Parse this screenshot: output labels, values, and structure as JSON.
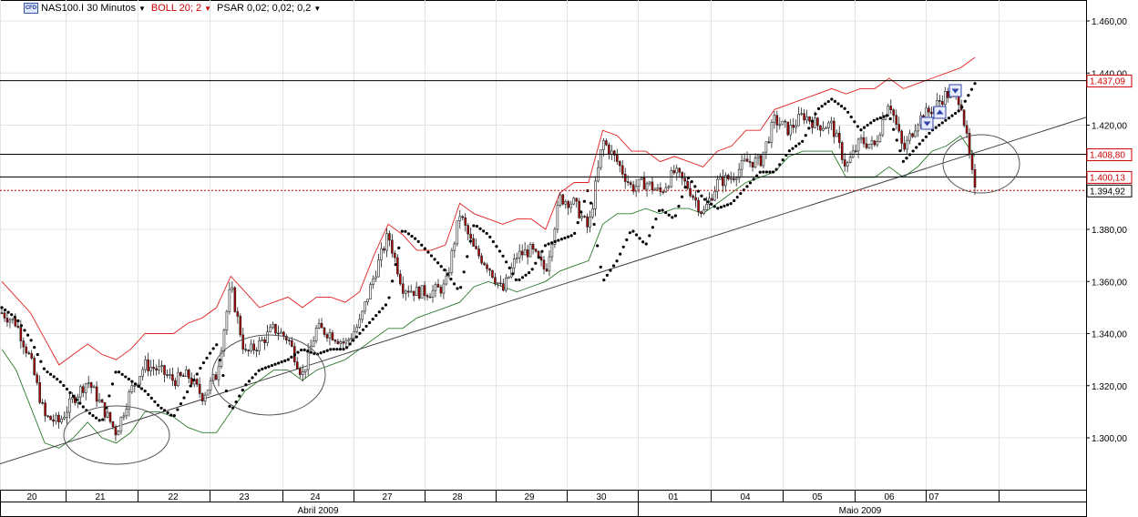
{
  "toolbar": {
    "symbol_label": "NAS100.I 30 Minutos",
    "symbol_icon": "cfd-icon",
    "boll_label": "BOLL 20; 2",
    "psar_label": "PSAR 0,02; 0,02; 0,2"
  },
  "chart_data": {
    "type": "candlestick",
    "y_axis": {
      "ticks": [
        1300,
        1320,
        1340,
        1360,
        1380,
        1400,
        1420,
        1440,
        1460
      ],
      "tick_labels": [
        "1.300,00",
        "1.320,00",
        "1.340,00",
        "1.360,00",
        "1.380,00",
        "1.400,00",
        "1.420,00",
        "1.440,00",
        "1.460,00"
      ],
      "range": [
        1280,
        1465
      ]
    },
    "x_axis": {
      "day_labels": [
        "20",
        "21",
        "22",
        "23",
        "24",
        "27",
        "28",
        "29",
        "30",
        "01",
        "04",
        "05",
        "06",
        "07"
      ],
      "month_labels": [
        "Abril 2009",
        "Maio 2009"
      ]
    },
    "price_levels": [
      {
        "value": 1437.09,
        "label": "1.437,09",
        "style": "solid",
        "color": "#000000",
        "label_color": "#cc0000"
      },
      {
        "value": 1408.8,
        "label": "1.408,80",
        "style": "solid",
        "color": "#000000",
        "label_color": "#cc0000"
      },
      {
        "value": 1400.13,
        "label": "1.400,13",
        "style": "solid",
        "color": "#000000",
        "label_color": "#cc0000"
      },
      {
        "value": 1394.92,
        "label": "1.394,92",
        "style": "dotted",
        "color": "#cc0000",
        "label_color": "#000000"
      }
    ],
    "price_path": [
      1348,
      1344,
      1330,
      1308,
      1306,
      1315,
      1322,
      1312,
      1302,
      1318,
      1328,
      1326,
      1322,
      1324,
      1316,
      1324,
      1358,
      1332,
      1336,
      1342,
      1338,
      1324,
      1342,
      1340,
      1336,
      1344,
      1362,
      1378,
      1358,
      1356,
      1356,
      1358,
      1386,
      1372,
      1366,
      1356,
      1370,
      1372,
      1364,
      1392,
      1390,
      1380,
      1414,
      1406,
      1396,
      1398,
      1394,
      1402,
      1396,
      1386,
      1398,
      1400,
      1406,
      1406,
      1422,
      1418,
      1424,
      1420,
      1420,
      1404,
      1414,
      1412,
      1430,
      1410,
      1422,
      1426,
      1432,
      1430,
      1394
    ],
    "bollinger_upper": [
      1360,
      1354,
      1348,
      1338,
      1328,
      1332,
      1336,
      1332,
      1330,
      1334,
      1340,
      1340,
      1340,
      1344,
      1346,
      1350,
      1362,
      1356,
      1350,
      1352,
      1354,
      1350,
      1354,
      1354,
      1352,
      1356,
      1370,
      1382,
      1378,
      1372,
      1372,
      1374,
      1390,
      1386,
      1384,
      1382,
      1384,
      1384,
      1380,
      1394,
      1398,
      1398,
      1418,
      1416,
      1410,
      1410,
      1406,
      1408,
      1406,
      1404,
      1410,
      1412,
      1418,
      1418,
      1426,
      1428,
      1430,
      1432,
      1434,
      1432,
      1434,
      1434,
      1438,
      1434,
      1436,
      1438,
      1440,
      1442,
      1446
    ],
    "bollinger_lower": [
      1334,
      1326,
      1312,
      1298,
      1296,
      1300,
      1306,
      1300,
      1298,
      1302,
      1310,
      1310,
      1308,
      1304,
      1302,
      1302,
      1310,
      1318,
      1322,
      1326,
      1326,
      1322,
      1326,
      1328,
      1330,
      1334,
      1338,
      1342,
      1342,
      1346,
      1348,
      1350,
      1352,
      1358,
      1360,
      1358,
      1356,
      1358,
      1360,
      1364,
      1366,
      1368,
      1382,
      1386,
      1386,
      1388,
      1386,
      1388,
      1388,
      1386,
      1390,
      1394,
      1398,
      1400,
      1402,
      1408,
      1410,
      1410,
      1410,
      1400,
      1400,
      1400,
      1404,
      1400,
      1404,
      1410,
      1412,
      1416,
      1408
    ],
    "psar": [
      1350,
      1346,
      1338,
      1326,
      1322,
      1316,
      1310,
      1306,
      1326,
      1322,
      1318,
      1312,
      1308,
      1318,
      1328,
      1336,
      1310,
      1320,
      1326,
      1328,
      1330,
      1334,
      1332,
      1334,
      1334,
      1340,
      1346,
      1352,
      1380,
      1376,
      1370,
      1364,
      1356,
      1382,
      1378,
      1370,
      1360,
      1364,
      1374,
      1376,
      1378,
      1396,
      1360,
      1368,
      1380,
      1374,
      1388,
      1384,
      1400,
      1392,
      1388,
      1390,
      1396,
      1402,
      1402,
      1410,
      1414,
      1426,
      1430,
      1426,
      1418,
      1422,
      1424,
      1406,
      1412,
      1418,
      1422,
      1426,
      1436
    ],
    "trendline": {
      "from": 1290,
      "to": 1423
    },
    "ellipses_label": "support-touch-circles"
  }
}
